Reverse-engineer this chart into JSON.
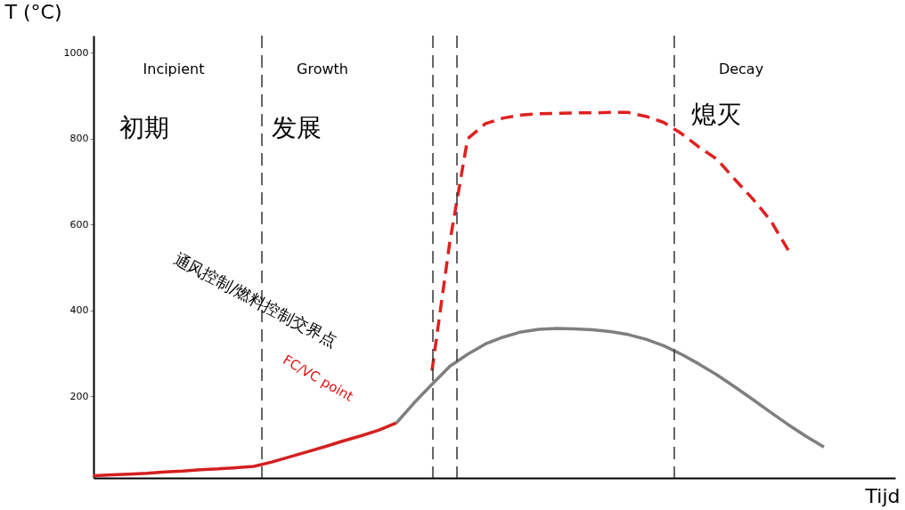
{
  "chart_data": {
    "type": "line",
    "xlabel": "Tijd",
    "ylabel": "T (°C)",
    "categories": [
      null,
      null,
      null,
      null,
      null,
      null,
      null,
      null,
      null,
      null,
      null,
      null,
      null,
      null,
      null,
      null,
      null,
      null,
      null,
      null,
      null,
      null,
      null,
      null,
      null,
      null,
      null,
      null,
      null,
      null,
      null,
      null,
      null,
      null,
      null,
      null,
      null,
      null,
      null,
      null,
      null,
      null,
      null,
      null,
      null,
      null
    ],
    "series": [
      {
        "color": "#d42020",
        "line_style": "solid",
        "values": [
          15,
          17,
          19,
          21,
          24,
          26,
          29,
          31,
          34,
          37,
          47,
          59,
          71,
          83,
          96,
          108,
          121,
          138,
          null,
          null,
          null,
          null,
          null,
          null,
          null,
          null,
          null,
          null,
          null,
          null,
          null,
          null,
          null,
          null,
          null,
          null,
          null,
          null,
          null,
          null,
          null,
          null,
          null,
          null,
          null,
          null
        ]
      },
      {
        "color": "#7f7f7f",
        "line_style": "solid",
        "values": [
          null,
          null,
          null,
          null,
          null,
          null,
          null,
          null,
          null,
          null,
          null,
          null,
          null,
          null,
          null,
          null,
          null,
          138,
          185,
          228,
          270,
          298,
          322,
          338,
          350,
          356,
          358,
          357,
          355,
          351,
          344,
          333,
          318,
          298,
          275,
          250,
          222,
          193,
          163,
          134,
          107,
          82,
          null,
          null,
          null,
          null
        ]
      },
      {
        "color": "#e02020",
        "line_style": "dashed",
        "values": [
          null,
          null,
          null,
          null,
          null,
          null,
          null,
          null,
          null,
          null,
          null,
          null,
          null,
          null,
          null,
          null,
          null,
          null,
          null,
          260,
          560,
          800,
          835,
          848,
          855,
          858,
          859,
          860,
          860,
          861,
          861,
          852,
          838,
          812,
          780,
          752,
          705,
          660,
          610,
          540,
          null,
          null,
          null,
          null,
          null,
          null
        ]
      }
    ],
    "ylim": [
      10,
      1040
    ],
    "yticks": [
      200,
      400,
      600,
      800,
      1000
    ],
    "tick_labels": "y",
    "grid": false,
    "annotations": [
      "Incipient",
      "Growth",
      "Decay",
      "初期",
      "发展",
      "熄灭",
      "通风控制/燃料控制交界点",
      "FC/VC point"
    ]
  }
}
